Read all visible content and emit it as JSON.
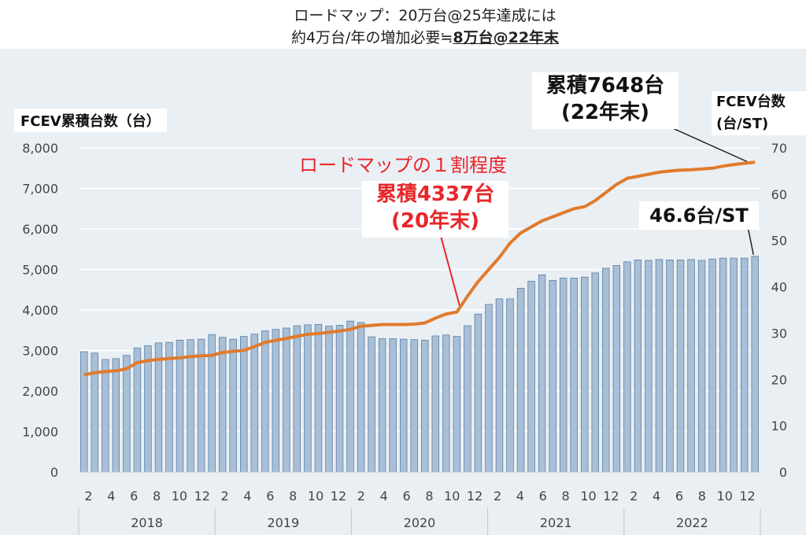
{
  "header": {
    "line1": "ロードマップ：20万台@25年達成には",
    "line2_prefix": "約4万台/年の増加必要≒",
    "line2_highlight": "8万台@22年末"
  },
  "annotations": {
    "roadmap_ratio": "ロードマップの１割程度",
    "cum_2020_value": "累積4337台",
    "cum_2020_period": "(20年末)",
    "cum_2022_value": "累積7648台",
    "cum_2022_period": "(22年末)",
    "per_station": "46.6台/ST"
  },
  "colors": {
    "bar": "#a8bfd6",
    "bar_edge": "#5a7fa6",
    "line": "#e07b2c",
    "red_text": "#e8262a",
    "bg": "#eaeff4"
  },
  "chart_data": {
    "type": "bar+line",
    "left_axis": {
      "label": "FCEV累積台数（台）",
      "min": 0,
      "max": 8000,
      "ticks": [
        "0",
        "1,000",
        "2,000",
        "3,000",
        "4,000",
        "5,000",
        "6,000",
        "7,000",
        "8,000"
      ]
    },
    "right_axis": {
      "label_line1": "FCEV台数",
      "label_line2": "(台/ST)",
      "min": 0,
      "max": 70,
      "ticks": [
        "0",
        "10",
        "20",
        "30",
        "40",
        "50",
        "60",
        "70"
      ]
    },
    "x_month_labels": [
      "2",
      "4",
      "6",
      "8",
      "10",
      "12",
      "2",
      "4",
      "6",
      "8",
      "10",
      "12",
      "2",
      "4",
      "6",
      "8",
      "10",
      "12",
      "2",
      "4",
      "6",
      "8",
      "10",
      "12",
      "2",
      "4",
      "6",
      "8",
      "10",
      "12"
    ],
    "years": [
      "2018",
      "2019",
      "2020",
      "2021",
      "2022"
    ],
    "series": [
      {
        "kind": "bar",
        "axis": "right",
        "values": [
          26,
          25.7,
          24.3,
          24.5,
          25.2,
          26.8,
          27.3,
          27.9,
          28,
          28.5,
          28.6,
          28.7,
          29.7,
          29.1,
          28.7,
          29.3,
          29.8,
          30.5,
          30.8,
          31.1,
          31.6,
          31.8,
          31.9,
          31.5,
          31.7,
          32.6,
          32.3,
          29.2,
          28.8,
          28.8,
          28.7,
          28.6,
          28.5,
          29.4,
          29.6,
          29.3,
          31.6,
          34.1,
          36.2,
          37.4,
          37.4,
          39.7,
          41.2,
          42.6,
          41.4,
          41.9,
          41.9,
          42.1,
          43,
          44,
          44.6,
          45.4,
          45.8,
          45.7,
          45.9,
          45.8,
          45.8,
          45.9,
          45.7,
          46,
          46.2,
          46.2,
          46.2,
          46.6
        ]
      },
      {
        "kind": "line",
        "axis": "left",
        "values": [
          2400,
          2450,
          2480,
          2500,
          2550,
          2700,
          2750,
          2780,
          2800,
          2820,
          2850,
          2870,
          2880,
          2950,
          2980,
          3000,
          3100,
          3200,
          3250,
          3300,
          3350,
          3400,
          3420,
          3450,
          3480,
          3520,
          3600,
          3620,
          3640,
          3640,
          3640,
          3650,
          3680,
          3800,
          3900,
          3950,
          4337,
          4700,
          5000,
          5300,
          5650,
          5900,
          6050,
          6200,
          6300,
          6400,
          6500,
          6550,
          6700,
          6900,
          7100,
          7250,
          7300,
          7350,
          7400,
          7430,
          7450,
          7460,
          7480,
          7500,
          7550,
          7590,
          7620,
          7648
        ]
      }
    ]
  }
}
